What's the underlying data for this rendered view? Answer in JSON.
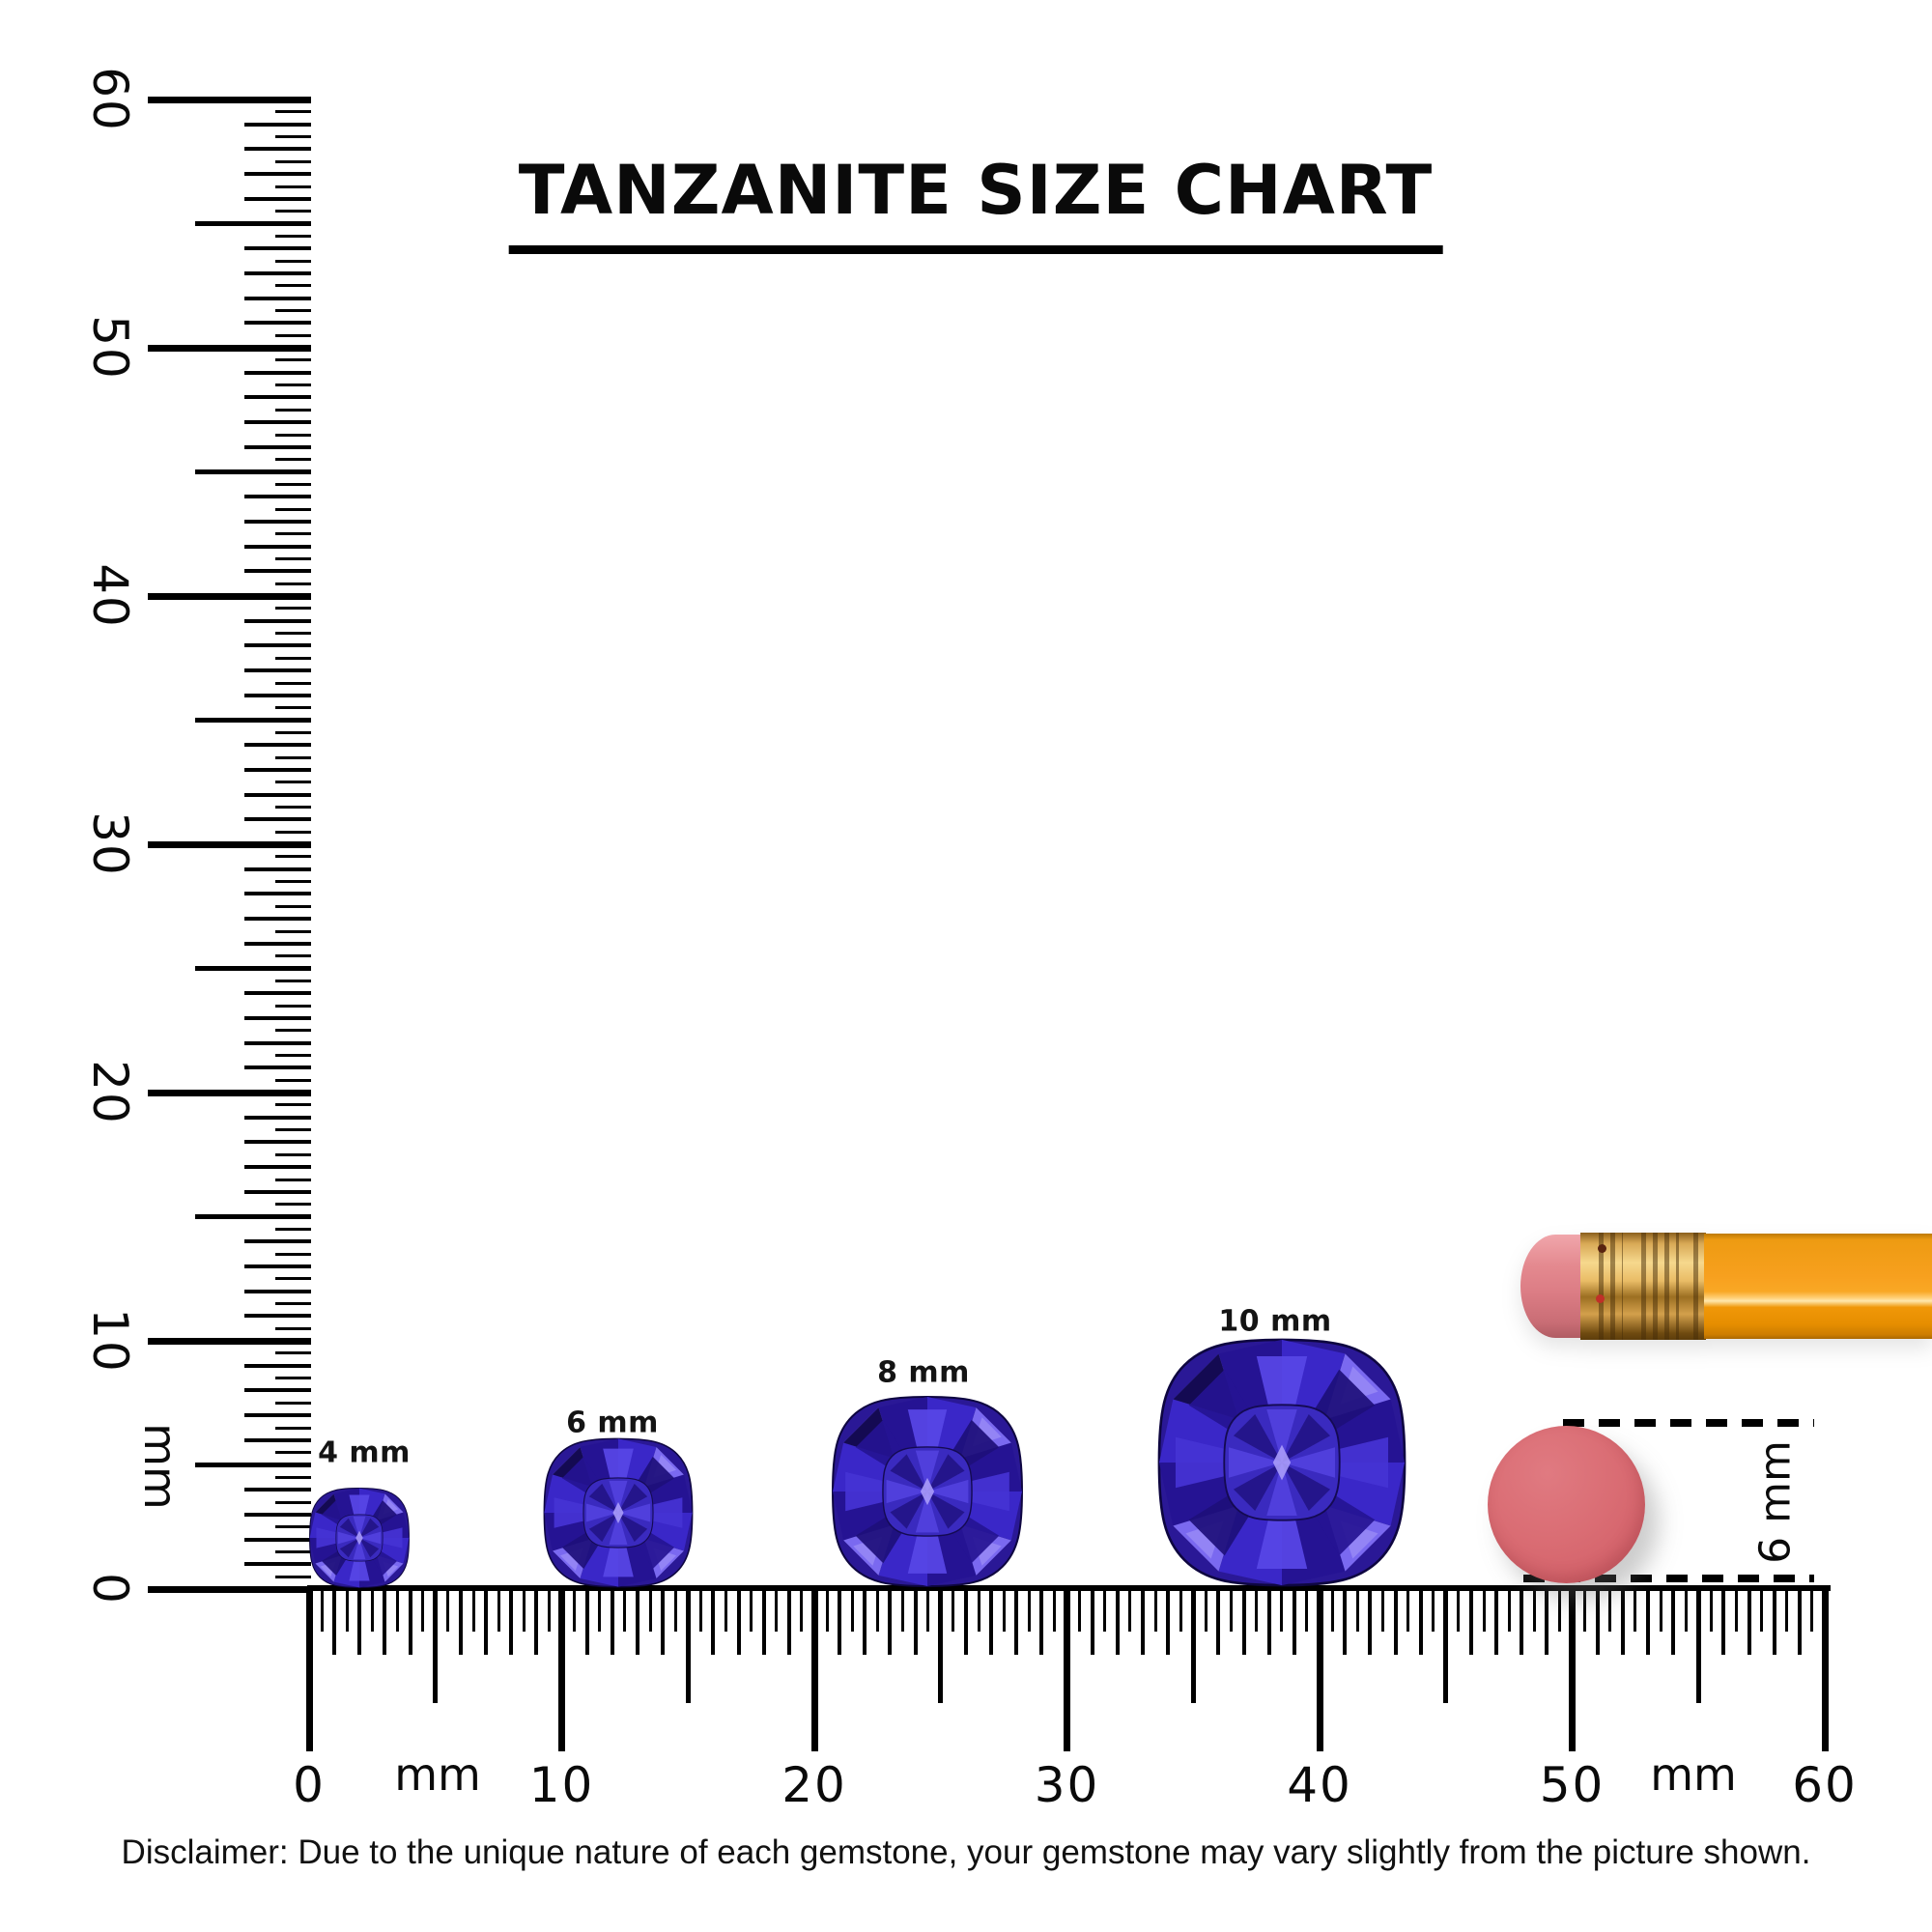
{
  "title": "TANZANITE SIZE CHART",
  "disclaimer": "Disclaimer: Due to the unique nature of each gemstone, your gemstone may vary slightly from the picture shown.",
  "vertical_ruler": {
    "unit": "mm",
    "labels": [
      "60",
      "50",
      "40",
      "30",
      "20",
      "10",
      "0"
    ],
    "range_mm": [
      0,
      60
    ]
  },
  "horizontal_ruler": {
    "unit_left": "mm",
    "unit_right": "mm",
    "labels": [
      "0",
      "10",
      "20",
      "30",
      "40",
      "50",
      "60"
    ],
    "range_mm": [
      0,
      60
    ]
  },
  "gems": [
    {
      "label": "4 mm",
      "size_mm": 4
    },
    {
      "label": "6 mm",
      "size_mm": 6
    },
    {
      "label": "8 mm",
      "size_mm": 8
    },
    {
      "label": "10 mm",
      "size_mm": 10
    }
  ],
  "eraser_measure": {
    "label": "6 mm",
    "size_mm": 6
  },
  "colors": {
    "ink": "#000000",
    "background": "#ffffff",
    "gem": {
      "base": "#2a1896",
      "darkest": "#140a52",
      "dark": "#251393",
      "dark2": "#1d0f7a",
      "mid": "#3a27c8",
      "mid2": "#4533d4",
      "bright": "#5847e6",
      "light": "#7a69f0",
      "pale": "#a89bfa",
      "table": "#3a2abf",
      "outline": "#0e0640"
    },
    "pencil": {
      "body": "#f7a01e",
      "ferrule": "#d8a855",
      "eraser": "#e0838c"
    },
    "round_eraser": "#d8686f"
  }
}
